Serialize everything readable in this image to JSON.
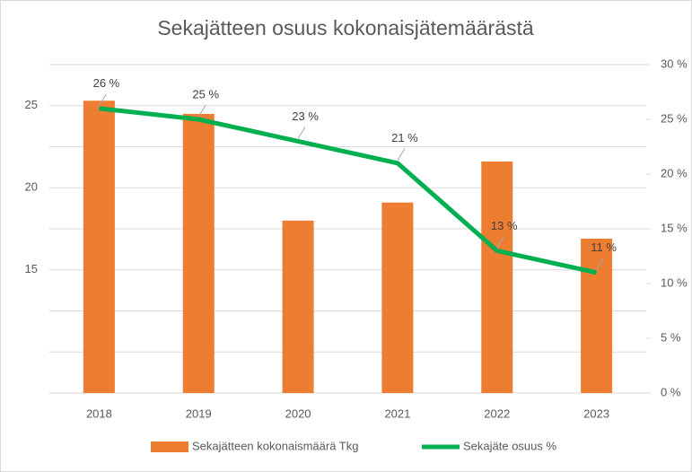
{
  "chart_data": {
    "type": "bar_line",
    "title": "Sekajätteen osuus kokonaisjätemäärästä",
    "categories": [
      "2018",
      "2019",
      "2020",
      "2021",
      "2022",
      "2023"
    ],
    "series": [
      {
        "name": "Sekajätteen kokonaismäärä Tkg",
        "color": "#ed7d31",
        "type": "bar",
        "values": [
          25.3,
          24.5,
          18.0,
          19.1,
          21.6,
          16.9
        ]
      },
      {
        "name": "Sekajäte osuus %",
        "color": "#00b050",
        "type": "line",
        "axis": "y2",
        "values": [
          26,
          25,
          23,
          21,
          13,
          11
        ],
        "value_labels": [
          "26 %",
          "25 %",
          "23 %",
          "21 %",
          "13 %",
          "11 %"
        ]
      }
    ],
    "ylim": [
      7.5,
      27.5
    ],
    "yticks": [
      15,
      20,
      25
    ],
    "ygrid": [
      7.5,
      10,
      12.5,
      15,
      17.5,
      20,
      22.5,
      25,
      27.5
    ],
    "y2lim": [
      0,
      30
    ],
    "y2ticks": [
      {
        "value": 0,
        "label": "0 %"
      },
      {
        "value": 5,
        "label": "5 %"
      },
      {
        "value": 10,
        "label": "10 %"
      },
      {
        "value": 15,
        "label": "15 %"
      },
      {
        "value": 20,
        "label": "20 %"
      },
      {
        "value": 25,
        "label": "25 %"
      },
      {
        "value": 30,
        "label": "30 %"
      }
    ],
    "grid": true,
    "legend": "bottom"
  }
}
